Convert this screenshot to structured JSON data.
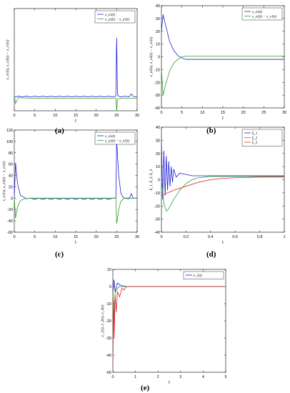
{
  "chart_data": [
    {
      "type": "line",
      "panel": "(a)",
      "xlabel": "t",
      "ylabel": "x_e1(t), x_e2(t) − x_e1(t)",
      "xlim": [
        0,
        30
      ],
      "ylim": [
        -20,
        120
      ],
      "xticks": [
        0,
        5,
        10,
        15,
        20,
        25,
        30
      ],
      "yticks": [],
      "legend": [
        "x_e1(t)",
        "x_e2(t) − x_e1(t)"
      ],
      "legend_placement": "top-right",
      "series": [
        {
          "name": "x_e1(t)",
          "color": "#1f1fd6",
          "x": [
            0,
            0.3,
            1,
            2,
            3,
            4,
            5,
            6,
            7,
            8,
            9,
            10,
            11,
            12,
            13,
            14,
            15,
            16,
            17,
            18,
            19,
            20,
            21,
            22,
            23,
            24,
            24.8,
            25,
            25.2,
            25.5,
            26,
            27,
            28,
            28.6,
            29,
            29.5,
            30
          ],
          "y": [
            0,
            -1,
            0,
            -1,
            0,
            -1,
            0,
            -1,
            0,
            -1,
            0,
            -1,
            0,
            -1,
            0,
            -1,
            0,
            -1,
            0,
            -1,
            0,
            -1,
            0,
            -1,
            0,
            -1,
            0,
            80,
            2,
            0,
            -1,
            0,
            -1,
            3,
            0,
            -1,
            0
          ]
        },
        {
          "name": "x_e2(t) − x_e1(t)",
          "color": "#2aa02a",
          "x": [
            0,
            0.3,
            1,
            5,
            10,
            15,
            20,
            24.8,
            25,
            25.2,
            26,
            30
          ],
          "y": [
            0,
            -10,
            -2,
            -3,
            -3,
            -3,
            -3,
            -3,
            -20,
            -4,
            -3,
            -3
          ]
        }
      ]
    },
    {
      "type": "line",
      "panel": "(b)",
      "xlabel": "t",
      "ylabel": "x_e2(t), x_e2(t) − x_e1(t)",
      "xlim": [
        0,
        30
      ],
      "ylim": [
        -40,
        40
      ],
      "xticks": [
        0,
        5,
        10,
        15,
        20,
        25,
        30
      ],
      "yticks": [
        -40,
        -30,
        -20,
        -10,
        0,
        10,
        20,
        30,
        40
      ],
      "legend": [
        "x_e2(t)",
        "x_e2(t) − x_e1(t)"
      ],
      "legend_placement": "top-right",
      "series": [
        {
          "name": "x_e2(t)",
          "color": "#1f1fd6",
          "x": [
            0,
            0.4,
            1,
            2,
            3,
            4,
            5,
            6,
            8,
            10,
            15,
            20,
            25,
            30
          ],
          "y": [
            20,
            33,
            25,
            12,
            5,
            1,
            -1,
            -2,
            -2,
            -2,
            -2,
            -2,
            -2,
            -2
          ]
        },
        {
          "name": "x_e2(t) − x_e1(t)",
          "color": "#2aa02a",
          "x": [
            0,
            0.4,
            1,
            2,
            3,
            4,
            5,
            6,
            8,
            10,
            15,
            20,
            25,
            30
          ],
          "y": [
            -10,
            -30,
            -22,
            -11,
            -5,
            -2,
            0,
            0.5,
            0.5,
            0.5,
            0.5,
            0.5,
            0.5,
            0.5
          ]
        }
      ]
    },
    {
      "type": "line",
      "panel": "(c)",
      "xlabel": "t",
      "ylabel": "x_e1(t), x_e2(t) − x_e1(t)",
      "xlim": [
        0,
        30
      ],
      "ylim": [
        -60,
        120
      ],
      "xticks": [
        0,
        5,
        10,
        15,
        20,
        25,
        30
      ],
      "yticks": [
        -60,
        -40,
        -20,
        0,
        20,
        40,
        60,
        80,
        100,
        120
      ],
      "legend": [
        "x_e1(t)",
        "x_e2(t) − x_e1(t)"
      ],
      "legend_placement": "top-right",
      "series": [
        {
          "name": "x_e1(t)",
          "color": "#1f1fd6",
          "x": [
            0,
            0.3,
            0.8,
            1.5,
            2.5,
            3,
            4,
            5,
            6,
            7,
            8,
            9,
            10,
            11,
            12,
            13,
            14,
            15,
            16,
            17,
            18,
            19,
            20,
            21,
            22,
            23,
            24,
            24.8,
            25,
            25.5,
            26,
            26.5,
            27,
            28,
            28.6,
            29,
            30
          ],
          "y": [
            0,
            62,
            25,
            5,
            1,
            -1,
            0,
            -2,
            0,
            -2,
            0,
            -2,
            0,
            -2,
            0,
            -2,
            0,
            -2,
            0,
            -2,
            0,
            -2,
            0,
            -2,
            0,
            -2,
            0,
            0,
            100,
            40,
            10,
            2,
            0,
            -1,
            8,
            0,
            0
          ]
        },
        {
          "name": "x_e2(t) − x_e1(t)",
          "color": "#2aa02a",
          "x": [
            0,
            0.3,
            0.8,
            1.5,
            2.5,
            4,
            10,
            20,
            24.8,
            25,
            25.5,
            26,
            26.5,
            27,
            28,
            30
          ],
          "y": [
            0,
            -35,
            -15,
            -4,
            -1,
            0,
            0,
            0,
            0,
            -45,
            -20,
            -6,
            -2,
            0,
            0,
            0
          ]
        }
      ]
    },
    {
      "type": "line",
      "panel": "(d)",
      "xlabel": "t",
      "ylabel": "k̂_1, k̂_2, k̂_3",
      "xlim": [
        0,
        1
      ],
      "ylim": [
        -40,
        40
      ],
      "xticks": [
        0,
        0.2,
        0.4,
        0.6,
        0.8,
        1
      ],
      "yticks": [
        -40,
        -30,
        -20,
        -10,
        0,
        10,
        20,
        30,
        40
      ],
      "legend": [
        "k̂_1",
        "k̂_2",
        "k̂_3"
      ],
      "legend_placement": "top-right",
      "series": [
        {
          "name": "k̂_1",
          "color": "#1f1fd6",
          "x": [
            0,
            0.01,
            0.02,
            0.03,
            0.04,
            0.05,
            0.06,
            0.07,
            0.08,
            0.09,
            0.1,
            0.12,
            0.15,
            0.2,
            0.25,
            0.3,
            0.4,
            0.5,
            0.6,
            0.8,
            1
          ],
          "y": [
            30,
            -15,
            22,
            -12,
            18,
            -8,
            14,
            -5,
            10,
            -2,
            8,
            2,
            5,
            4,
            3,
            3,
            3,
            3,
            3,
            3,
            3
          ]
        },
        {
          "name": "k̂_2",
          "color": "#2aa02a",
          "x": [
            0,
            0.02,
            0.04,
            0.06,
            0.1,
            0.15,
            0.2,
            0.25,
            0.3,
            0.35,
            0.4,
            0.5,
            0.6,
            0.8,
            1
          ],
          "y": [
            0,
            -18,
            -24,
            -22,
            -15,
            -8,
            -3,
            0,
            1.5,
            2,
            2.5,
            2.5,
            2.5,
            2.5,
            2.5
          ]
        },
        {
          "name": "k̂_3",
          "color": "#e02020",
          "x": [
            0,
            0.05,
            0.1,
            0.2,
            0.3,
            0.4,
            0.5,
            0.6,
            0.8,
            1
          ],
          "y": [
            -12,
            -10,
            -8,
            -5,
            -2,
            0,
            1,
            1.5,
            2,
            2
          ]
        }
      ]
    },
    {
      "type": "line",
      "panel": "(e)",
      "xlabel": "t",
      "ylabel": "e_1(t), e_2(t), e_3(t)",
      "xlim": [
        0,
        5
      ],
      "ylim": [
        -50,
        10
      ],
      "xticks": [
        0,
        1,
        2,
        3,
        4,
        5
      ],
      "yticks": [
        -50,
        -40,
        -30,
        -20,
        -10,
        0,
        10
      ],
      "legend": [
        "e_1(t)"
      ],
      "legend_placement": "top-right",
      "series": [
        {
          "name": "e_1(t)",
          "color": "#1f1fd6",
          "x": [
            0,
            0.05,
            0.1,
            0.2,
            0.3,
            0.4,
            0.6,
            0.8,
            1,
            2,
            5
          ],
          "y": [
            -5,
            4,
            -3,
            2,
            1,
            0.5,
            0,
            0,
            0,
            0,
            0
          ]
        },
        {
          "name": "",
          "color": "#2aa02a",
          "x": [
            0,
            0.05,
            0.1,
            0.2,
            0.3,
            0.5,
            0.8,
            1,
            5
          ],
          "y": [
            0,
            -20,
            -4,
            -1,
            0,
            0,
            0,
            0,
            0
          ]
        },
        {
          "name": "",
          "color": "#e02020",
          "x": [
            0,
            0.03,
            0.06,
            0.1,
            0.15,
            0.2,
            0.3,
            0.4,
            0.5,
            0.6,
            0.8,
            1,
            5
          ],
          "y": [
            -48,
            -8,
            -30,
            -5,
            -15,
            -3,
            -6,
            -1,
            -2,
            0,
            0,
            0,
            0
          ]
        }
      ]
    }
  ],
  "captions": {
    "a": "(a)",
    "b": "(b)",
    "c": "(c)",
    "d": "(d)",
    "e": "(e)"
  }
}
